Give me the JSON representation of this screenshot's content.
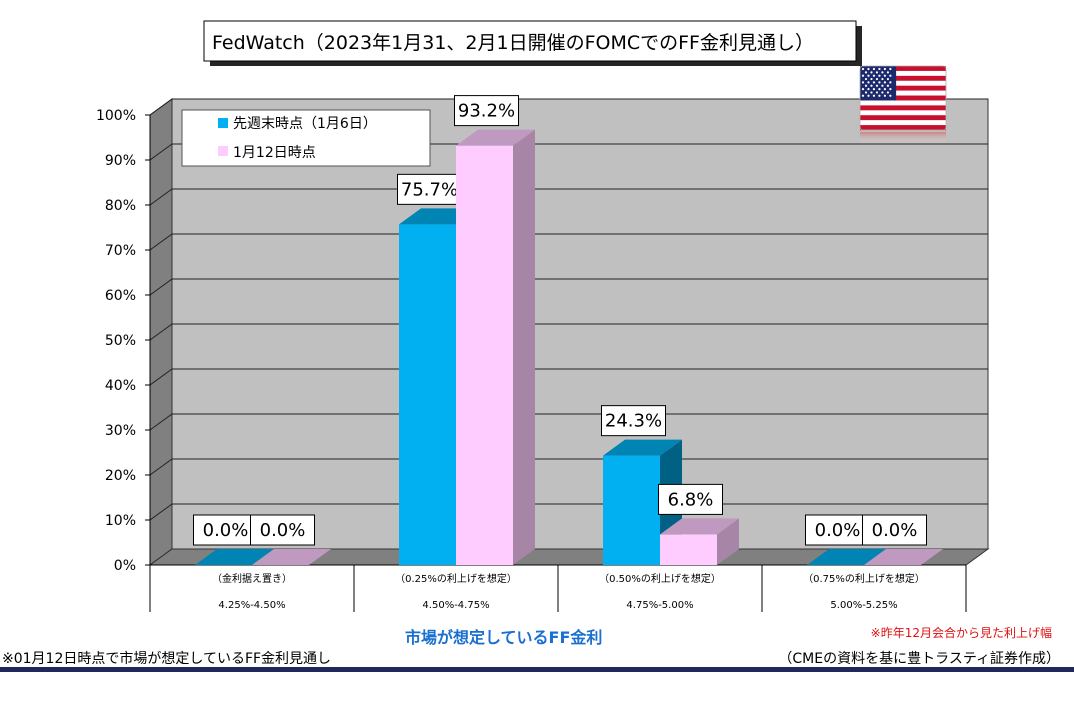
{
  "chart_data": {
    "type": "bar",
    "title": "FedWatch（2023年1月31、2月1日開催のFOMCでのFF金利見通し）",
    "categories": [
      {
        "note": "（金利据え置き）",
        "range": "4.25%-4.50%"
      },
      {
        "note": "（0.25%の利上げを想定）",
        "range": "4.50%-4.75%"
      },
      {
        "note": "（0.50%の利上げを想定）",
        "range": "4.75%-5.00%"
      },
      {
        "note": "（0.75%の利上げを想定）",
        "range": "5.00%-5.25%"
      }
    ],
    "series": [
      {
        "name": "先週末時点（1月6日）",
        "values": [
          0.0,
          75.7,
          24.3,
          0.0
        ],
        "labels": [
          "0.0%",
          "75.7%",
          "24.3%",
          "0.0%"
        ],
        "color": "#00b0f0"
      },
      {
        "name": "1月12日時点",
        "values": [
          0.0,
          93.2,
          6.8,
          0.0
        ],
        "labels": [
          "0.0%",
          "93.2%",
          "6.8%",
          "0.0%"
        ],
        "color": "#ffccff"
      }
    ],
    "yticks": [
      "0%",
      "10%",
      "20%",
      "30%",
      "40%",
      "50%",
      "60%",
      "70%",
      "80%",
      "90%",
      "100%"
    ],
    "ylim": [
      0,
      100
    ],
    "xlabel": "市場が想定しているFF金利",
    "grid": true,
    "legend": "top-left"
  },
  "footnotes": {
    "red_note": "※昨年12月会合から見た利上げ幅",
    "left": "※01月12日時点で市場が想定しているFF金利見通し",
    "right": "（CMEの資料を基に豊トラスティ証券作成）"
  },
  "flag": {
    "name": "us-flag-icon"
  }
}
